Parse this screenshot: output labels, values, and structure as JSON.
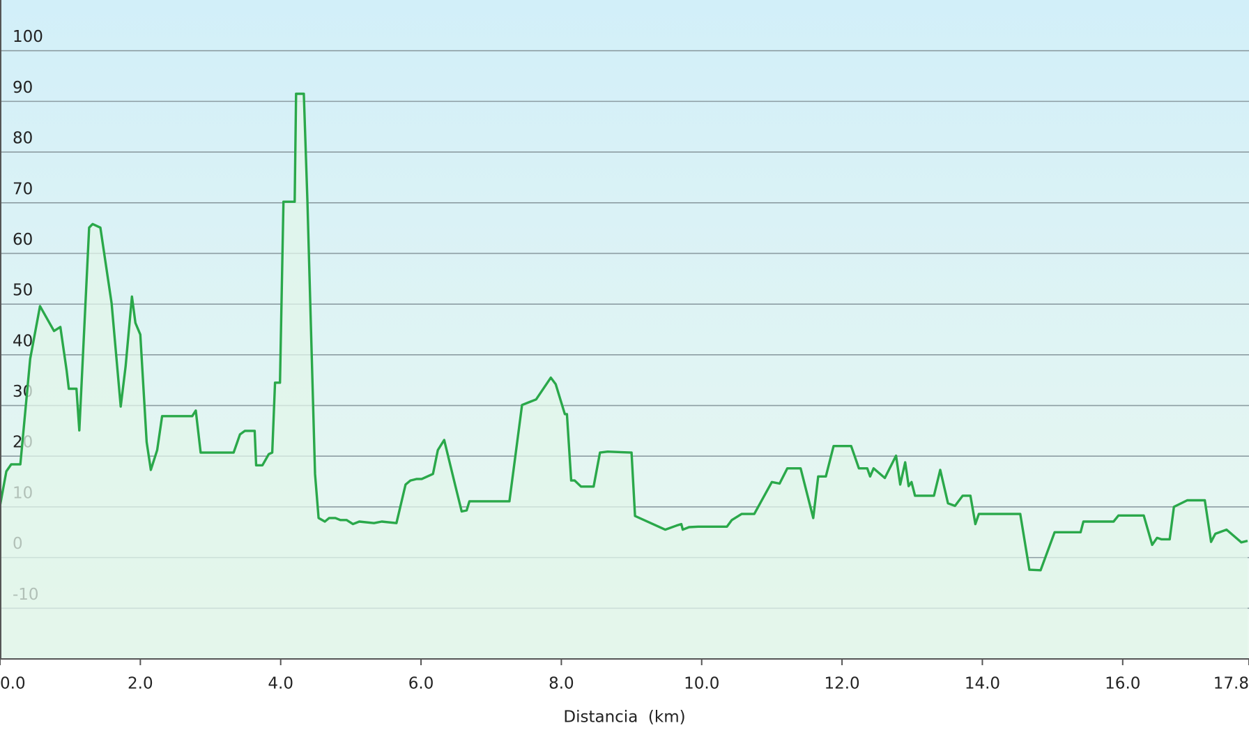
{
  "chart_data": {
    "type": "area-line",
    "x_label": "Distancia  (km)",
    "color": "#2aa84a",
    "fill": "#e2f5ea",
    "grid": true,
    "xlim": [
      0,
      17.8
    ],
    "ylim": [
      -20,
      110
    ],
    "xticks": [
      {
        "value": 0,
        "label": "0.0"
      },
      {
        "value": 2,
        "label": "2.0"
      },
      {
        "value": 4,
        "label": "4.0"
      },
      {
        "value": 6,
        "label": "6.0"
      },
      {
        "value": 8,
        "label": "8.0"
      },
      {
        "value": 10,
        "label": "10.0"
      },
      {
        "value": 12,
        "label": "12.0"
      },
      {
        "value": 14,
        "label": "14.0"
      },
      {
        "value": 16,
        "label": "16.0"
      },
      17.8
    ],
    "yticks": [
      -10,
      0,
      10,
      20,
      30,
      40,
      50,
      60,
      70,
      80,
      90,
      100
    ],
    "x": [
      0,
      0.09,
      0.16,
      0.29,
      0.43,
      0.57,
      0.77,
      0.86,
      0.95,
      0.98,
      1.09,
      1.13,
      1.27,
      1.32,
      1.43,
      1.59,
      1.72,
      1.79,
      1.88,
      1.93,
      2.0,
      2.09,
      2.15,
      2.24,
      2.31,
      2.74,
      2.79,
      2.86,
      3.33,
      3.42,
      3.49,
      3.63,
      3.65,
      3.74,
      3.83,
      3.88,
      3.92,
      3.99,
      4.04,
      4.2,
      4.22,
      4.33,
      4.38,
      4.49,
      4.54,
      4.63,
      4.69,
      4.78,
      4.85,
      4.94,
      5.03,
      5.12,
      5.33,
      5.44,
      5.65,
      5.78,
      5.85,
      5.94,
      6.01,
      6.17,
      6.24,
      6.33,
      6.49,
      6.58,
      6.65,
      6.69,
      7.26,
      7.44,
      7.64,
      7.85,
      7.92,
      8.05,
      8.08,
      8.14,
      8.19,
      8.28,
      8.46,
      8.55,
      8.66,
      9.0,
      9.05,
      9.48,
      9.64,
      9.71,
      9.73,
      9.82,
      9.95,
      10.36,
      10.43,
      10.57,
      10.75,
      11.0,
      11.11,
      11.22,
      11.41,
      11.59,
      11.66,
      11.77,
      11.88,
      12.13,
      12.24,
      12.36,
      12.4,
      12.45,
      12.61,
      12.77,
      12.83,
      12.9,
      12.95,
      12.99,
      13.04,
      13.31,
      13.4,
      13.51,
      13.61,
      13.72,
      13.83,
      13.9,
      13.95,
      14.54,
      14.67,
      14.83,
      15.03,
      15.4,
      15.44,
      15.87,
      15.94,
      16.3,
      16.42,
      16.49,
      16.55,
      16.67,
      16.73,
      16.92,
      17.17,
      17.26,
      17.32,
      17.48,
      17.69,
      17.78
    ],
    "values": [
      10.2,
      17.0,
      18.4,
      18.4,
      39.2,
      49.6,
      44.7,
      45.5,
      36.9,
      33.3,
      33.3,
      25.1,
      65.1,
      65.8,
      65.1,
      50.2,
      29.8,
      37.7,
      51.5,
      46.3,
      44.0,
      22.8,
      17.3,
      21.2,
      27.9,
      27.9,
      29.0,
      20.7,
      20.7,
      24.3,
      25.0,
      25.0,
      18.2,
      18.2,
      20.4,
      20.7,
      34.5,
      34.5,
      70.2,
      70.2,
      91.5,
      91.5,
      70.6,
      16.5,
      7.8,
      7.1,
      7.8,
      7.8,
      7.4,
      7.4,
      6.6,
      7.1,
      6.8,
      7.1,
      6.8,
      14.4,
      15.2,
      15.5,
      15.5,
      16.5,
      21.2,
      23.2,
      14.1,
      9.1,
      9.3,
      11.1,
      11.1,
      30.1,
      31.2,
      35.5,
      34.2,
      28.3,
      28.3,
      15.2,
      15.2,
      14.0,
      14.0,
      20.7,
      20.9,
      20.7,
      8.2,
      5.5,
      6.3,
      6.6,
      5.5,
      6.0,
      6.1,
      6.1,
      7.4,
      8.6,
      8.6,
      14.9,
      14.6,
      17.6,
      17.6,
      7.8,
      16.0,
      16.0,
      22.0,
      22.0,
      17.6,
      17.6,
      16.0,
      17.6,
      15.7,
      20.1,
      14.4,
      18.8,
      14.1,
      14.9,
      12.2,
      12.2,
      17.3,
      10.7,
      10.2,
      12.2,
      12.2,
      6.6,
      8.6,
      8.6,
      -2.4,
      -2.5,
      5.0,
      5.0,
      7.1,
      7.1,
      8.3,
      8.3,
      2.5,
      3.9,
      3.6,
      3.6,
      10.0,
      11.3,
      11.3,
      3.1,
      4.7,
      5.5,
      3.0,
      3.3
    ]
  }
}
